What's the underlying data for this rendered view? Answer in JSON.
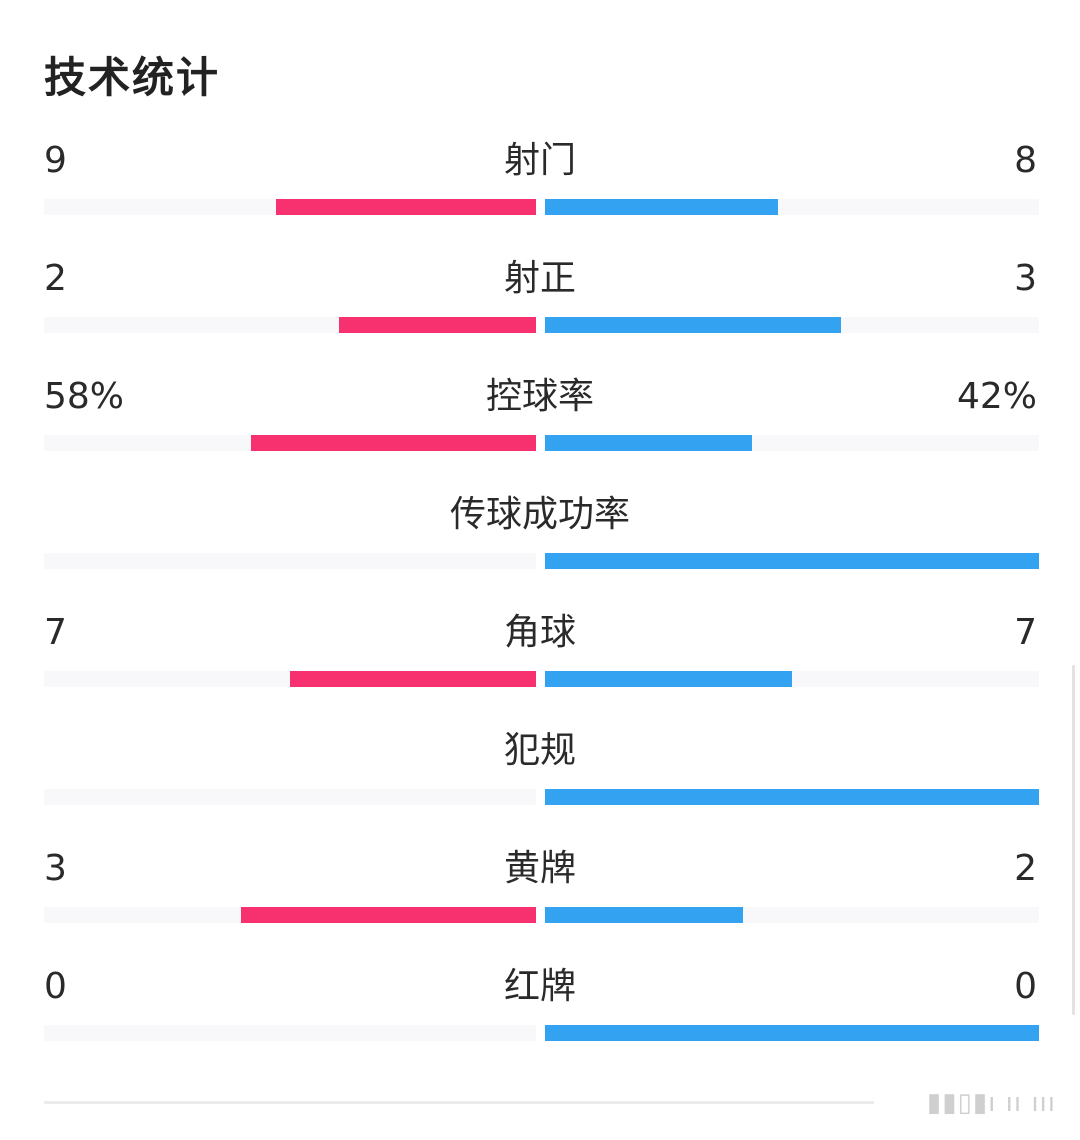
{
  "header": {
    "title": "技术统计"
  },
  "stats": [
    {
      "label": "射门",
      "left_text": "9",
      "right_text": "8",
      "left_ratio": 0.529,
      "right_ratio": 0.471
    },
    {
      "label": "射正",
      "left_text": "2",
      "right_text": "3",
      "left_ratio": 0.4,
      "right_ratio": 0.6
    },
    {
      "label": "控球率",
      "left_text": "58%",
      "right_text": "42%",
      "left_ratio": 0.58,
      "right_ratio": 0.42
    },
    {
      "label": "传球成功率",
      "left_text": "",
      "right_text": "",
      "left_ratio": 0,
      "right_ratio": 1
    },
    {
      "label": "角球",
      "left_text": "7",
      "right_text": "7",
      "left_ratio": 0.5,
      "right_ratio": 0.5
    },
    {
      "label": "犯规",
      "left_text": "",
      "right_text": "",
      "left_ratio": 0,
      "right_ratio": 1
    },
    {
      "label": "黄牌",
      "left_text": "3",
      "right_text": "2",
      "left_ratio": 0.6,
      "right_ratio": 0.4
    },
    {
      "label": "红牌",
      "left_text": "0",
      "right_text": "0",
      "left_ratio": 0,
      "right_ratio": 1
    }
  ],
  "colors": {
    "home_bar": "#f7306f",
    "away_bar": "#33a2f1",
    "track": "#f8f8fa"
  }
}
